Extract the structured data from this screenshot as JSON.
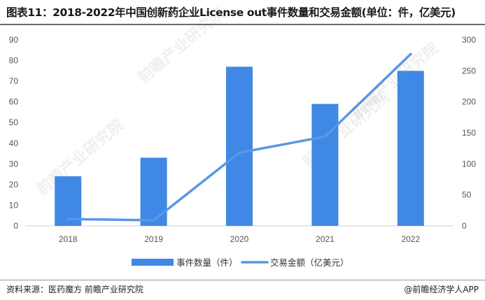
{
  "title": "图表11：2018-2022年中国创新药企业License out事件数量和交易金额(单位：件，亿美元)",
  "source": "资料来源：医药魔方 前瞻产业研究院",
  "credit": "@前瞻经济学人APP",
  "watermark": "前瞻产业研究院",
  "chart_data": {
    "type": "bar",
    "categories": [
      "2018",
      "2019",
      "2020",
      "2021",
      "2022"
    ],
    "series": [
      {
        "name": "事件数量（件）",
        "type": "bar",
        "axis": "left",
        "color": "#3f88e5",
        "values": [
          24,
          33,
          77,
          59,
          75
        ]
      },
      {
        "name": "交易金额（亿美元）",
        "type": "line",
        "axis": "right",
        "color": "#5a97e4",
        "values": [
          11,
          9,
          118,
          144,
          277
        ]
      }
    ],
    "y_left": {
      "ylim": [
        0,
        90
      ],
      "ticks": [
        0,
        10,
        20,
        30,
        40,
        50,
        60,
        70,
        80,
        90
      ]
    },
    "y_right": {
      "ylim": [
        0,
        300
      ],
      "ticks": [
        0,
        50,
        100,
        150,
        200,
        250,
        300
      ]
    },
    "grid": false,
    "legend_position": "bottom"
  }
}
